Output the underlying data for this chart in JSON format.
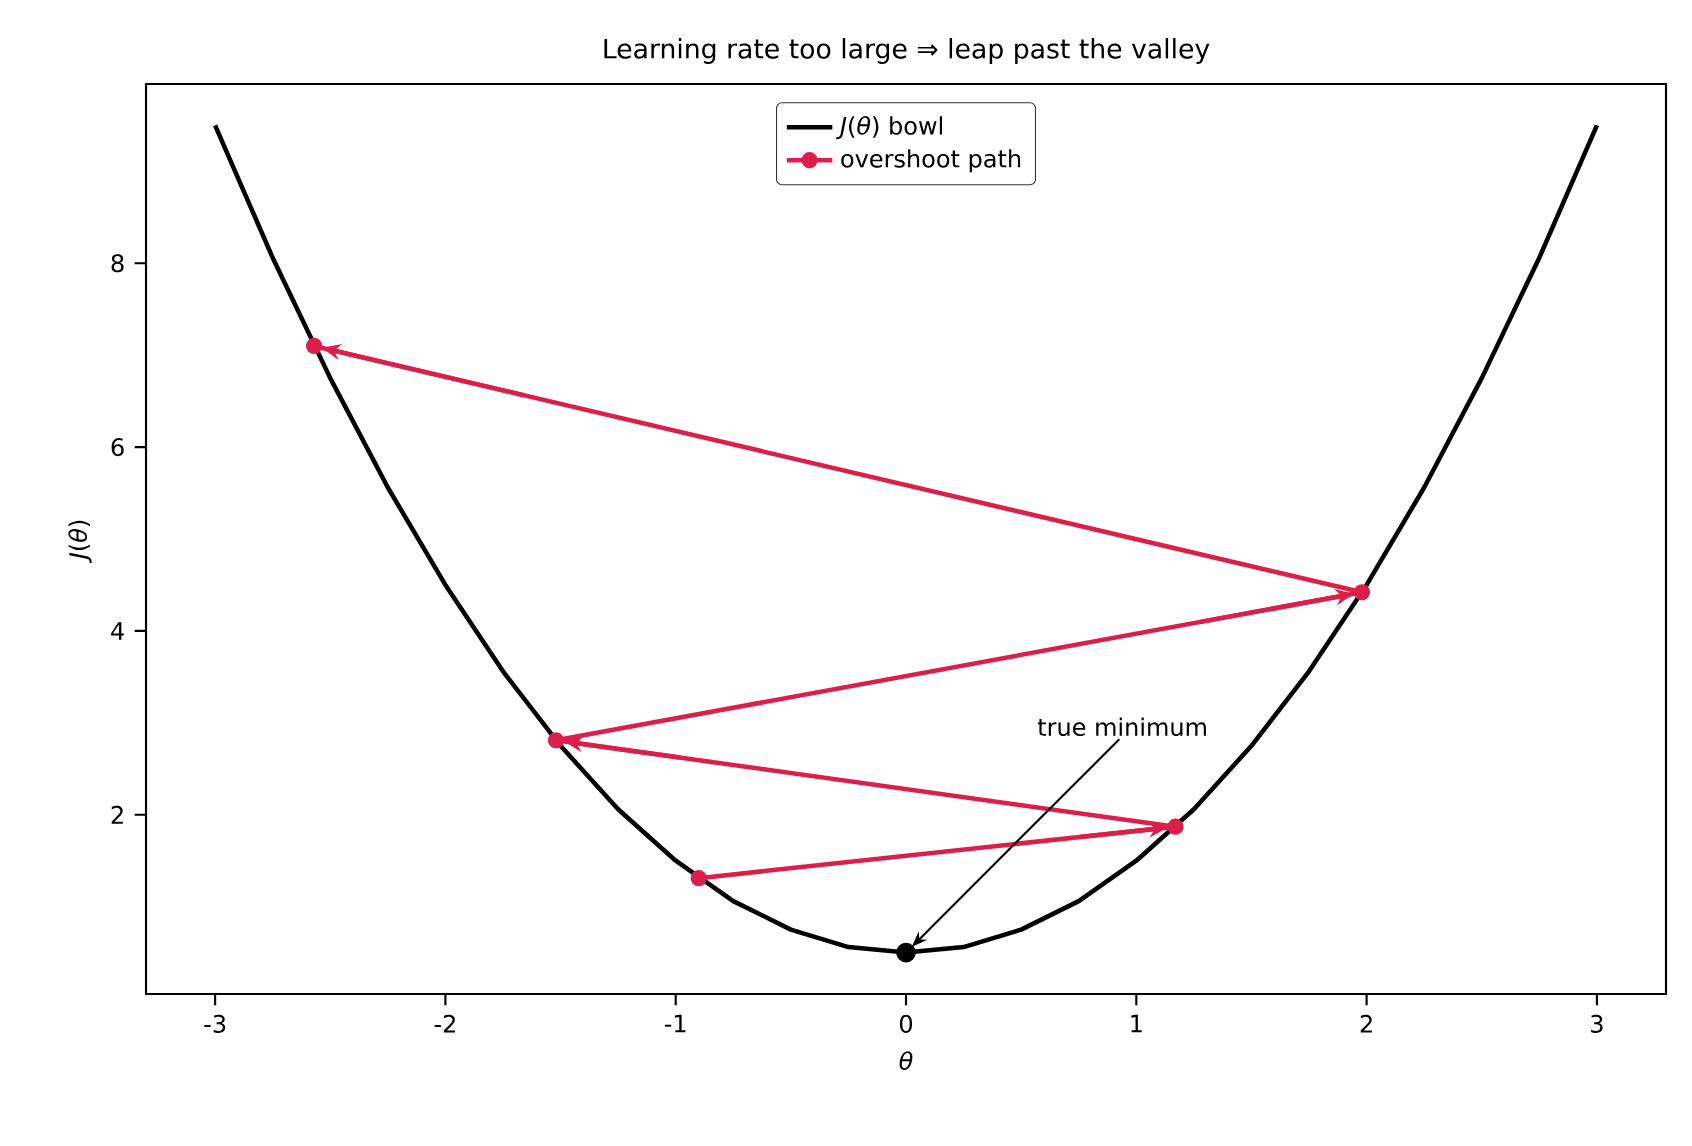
{
  "chart_data": {
    "type": "line",
    "title": "Learning rate too large ⇒ leap past the valley",
    "xlabel": "*θ*",
    "ylabel": "*J*(*θ*)",
    "xlim": [
      -3.3,
      3.3
    ],
    "ylim": [
      0.05,
      9.95
    ],
    "xticks": [
      -3,
      -2,
      -1,
      0,
      1,
      2,
      3
    ],
    "yticks": [
      2,
      4,
      6,
      8
    ],
    "legend": "top",
    "grid": false,
    "series": [
      {
        "name": "*J*(*θ*) bowl",
        "type": "line",
        "color": "#000000",
        "marker": "none",
        "x": [
          -3,
          -2.75,
          -2.5,
          -2.25,
          -2,
          -1.75,
          -1.5,
          -1.25,
          -1,
          -0.75,
          -0.5,
          -0.25,
          0,
          0.25,
          0.5,
          0.75,
          1,
          1.25,
          1.5,
          1.75,
          2,
          2.25,
          2.5,
          2.75,
          3
        ],
        "values": [
          9.5,
          8.06,
          6.75,
          5.56,
          4.5,
          3.56,
          2.75,
          2.06,
          1.5,
          1.06,
          0.75,
          0.56,
          0.5,
          0.56,
          0.75,
          1.06,
          1.5,
          2.06,
          2.75,
          3.56,
          4.5,
          5.56,
          6.75,
          8.06,
          9.5
        ]
      },
      {
        "name": "overshoot path",
        "type": "line",
        "color": "#dc1e4b",
        "marker": "circle",
        "x": [
          -0.9,
          1.17,
          -1.52,
          1.98,
          -2.57
        ],
        "values": [
          1.31,
          1.87,
          2.81,
          4.42,
          7.1
        ]
      },
      {
        "type": "scatter",
        "color": "#000000",
        "marker": "circle",
        "x": [
          0
        ],
        "values": [
          0.5
        ]
      }
    ],
    "annotations": [
      {
        "text": "true minimum",
        "x": 0,
        "y": 0.5
      }
    ]
  }
}
